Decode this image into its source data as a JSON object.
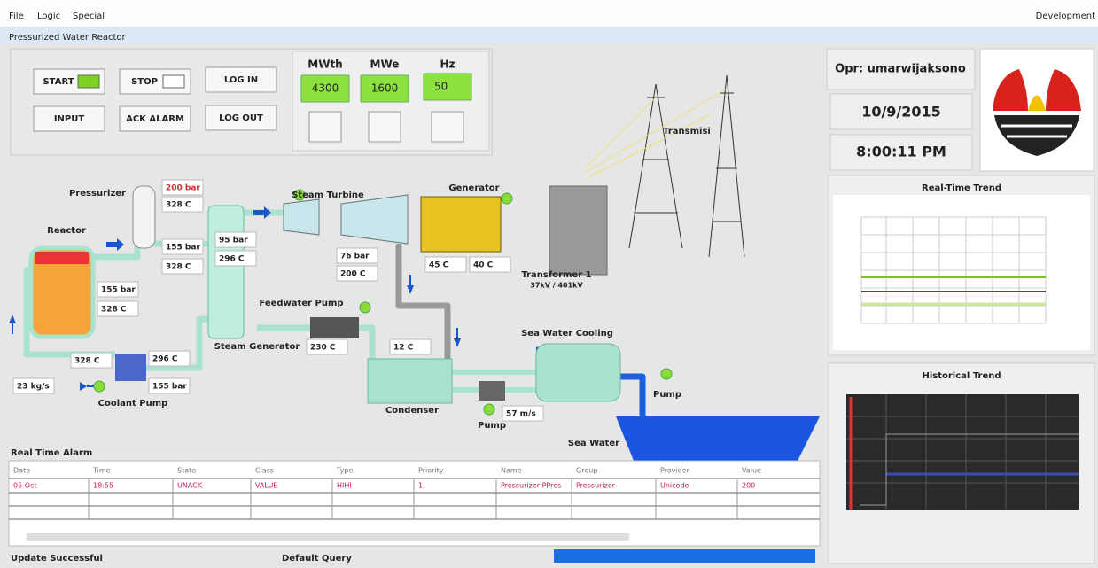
{
  "menu": [
    "File",
    "Logic",
    "Special"
  ],
  "menu_right": "Development",
  "window_title": "Pressurized Water Reactor",
  "buttons": [
    "START",
    "STOP",
    "LOG IN",
    "INPUT",
    "ACK ALARM",
    "LOG OUT"
  ],
  "meters": [
    {
      "label": "MWth",
      "value": 4300
    },
    {
      "label": "MWe",
      "value": 1600
    },
    {
      "label": "Hz",
      "value": 50
    }
  ],
  "operator": "Opr: umarwijaksono",
  "date": "10/9/2015",
  "time": "8:00:11 PM",
  "trends": [
    "Real-Time Trend",
    "Historical Trend"
  ],
  "diagram_labels": [
    "Pressurizer",
    "Reactor",
    "Steam Turbine",
    "Generator",
    "Transformer 1",
    "37kV / 401kV",
    "Transmisi",
    "Steam Generator",
    "Feedwater Pump",
    "Coolant Pump",
    "Condenser",
    "Sea Water Cooling",
    "Pump",
    "Pump",
    "Sea Water"
  ],
  "readouts": [
    "200 bar",
    "328 C",
    "155 bar",
    "328 C",
    "95 bar",
    "296 C",
    "76 bar",
    "200 C",
    "45 C",
    "40 C",
    "155 bar",
    "328 C",
    "328 C",
    "296 C",
    "155 bar",
    "23 kg/s",
    "230 C",
    "12 C",
    "57 m/s"
  ],
  "alarm": {
    "title": "Real Time Alarm",
    "headers": [
      "Date",
      "Time",
      "State",
      "Class",
      "Type",
      "Priority",
      "Name",
      "Group",
      "Provider",
      "Value"
    ],
    "rows": [
      [
        "05 Oct",
        "18:55",
        "UNACK",
        "VALUE",
        "HIHI",
        "1",
        "Pressurizer PPres",
        "Pressurizer",
        "Unicode",
        "200"
      ]
    ]
  },
  "status": [
    "Update Successful",
    "Default Query"
  ]
}
